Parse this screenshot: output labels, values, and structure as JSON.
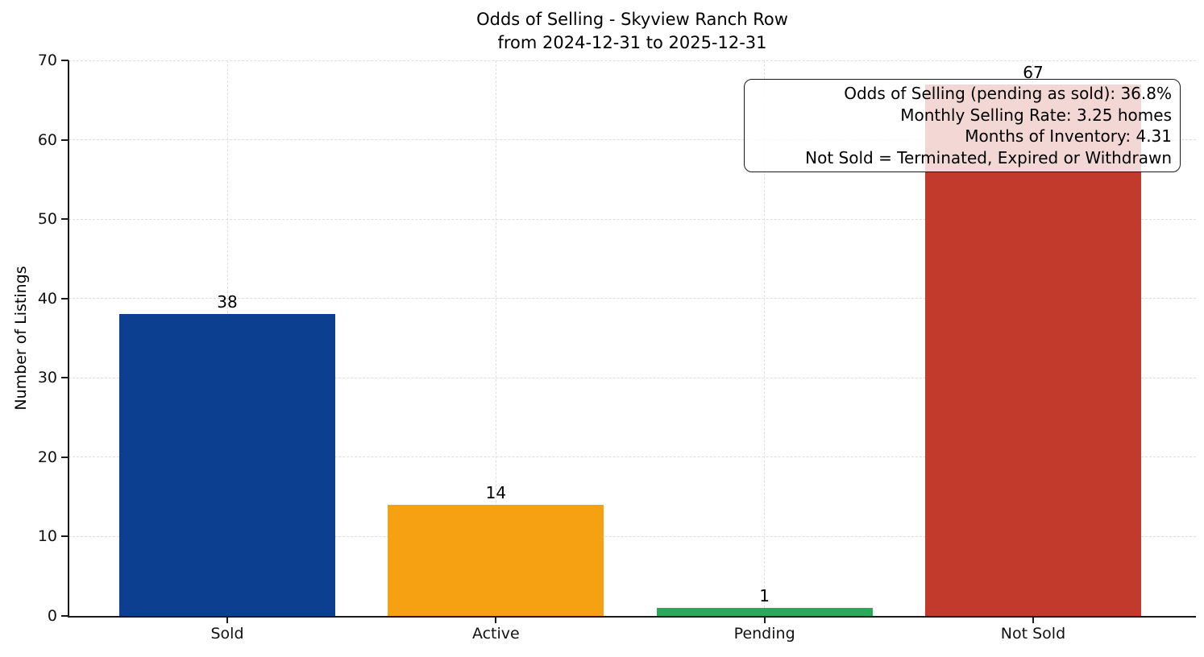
{
  "title": {
    "line1": "Odds of Selling - Skyview Ranch Row",
    "line2": "from 2024-12-31 to 2025-12-31"
  },
  "chart_data": {
    "type": "bar",
    "title": "Odds of Selling - Skyview Ranch Row\nfrom 2024-12-31 to 2025-12-31",
    "categories": [
      "Sold",
      "Active",
      "Pending",
      "Not Sold"
    ],
    "values": [
      38,
      14,
      1,
      67
    ],
    "value_labels": [
      "38",
      "14",
      "1",
      "67"
    ],
    "bar_colors": [
      "#0d3f91",
      "#f5a111",
      "#28a95c",
      "#c13a2b"
    ],
    "xlabel": "",
    "ylabel": "Number of Listings",
    "ylim": [
      0,
      70
    ],
    "yticks": [
      0,
      10,
      20,
      30,
      40,
      50,
      60,
      70
    ],
    "grid": {
      "horizontal": true,
      "vertical": true,
      "style": "dashed",
      "color": "#dedede"
    },
    "legend": null,
    "axis_color": "#1a1a1a",
    "annotation": {
      "position": "top-right",
      "lines": [
        "Odds of Selling (pending as sold): 36.8%",
        "Monthly Selling Rate: 3.25 homes",
        "Months of Inventory: 4.31",
        "Not Sold = Terminated, Expired or Withdrawn"
      ]
    }
  }
}
